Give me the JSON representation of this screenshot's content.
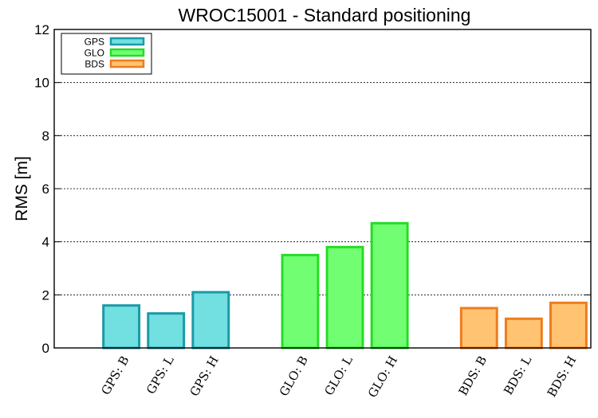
{
  "chart_data": {
    "type": "bar",
    "title": "WROC15001 - Standard positioning",
    "xlabel": "",
    "ylabel": "RMS [m]",
    "ylim": [
      0,
      12
    ],
    "yticks": [
      0,
      2,
      4,
      6,
      8,
      10,
      12
    ],
    "grid": "horizontal dashed",
    "legend_position": "top-left",
    "series": [
      {
        "name": "GPS",
        "fill": "#72dfe0",
        "stroke": "#1a9aa8",
        "categories": [
          "GPS: B",
          "GPS: L",
          "GPS: H"
        ],
        "values": [
          1.6,
          1.3,
          2.1
        ]
      },
      {
        "name": "GLO",
        "fill": "#72fe72",
        "stroke": "#26dc26",
        "categories": [
          "GLO: B",
          "GLO: L",
          "GLO: H"
        ],
        "values": [
          3.5,
          3.8,
          4.7
        ]
      },
      {
        "name": "BDS",
        "fill": "#ffc372",
        "stroke": "#ee7d1e",
        "categories": [
          "BDS: B",
          "BDS: L",
          "BDS: H"
        ],
        "values": [
          1.5,
          1.1,
          1.7
        ]
      }
    ]
  }
}
